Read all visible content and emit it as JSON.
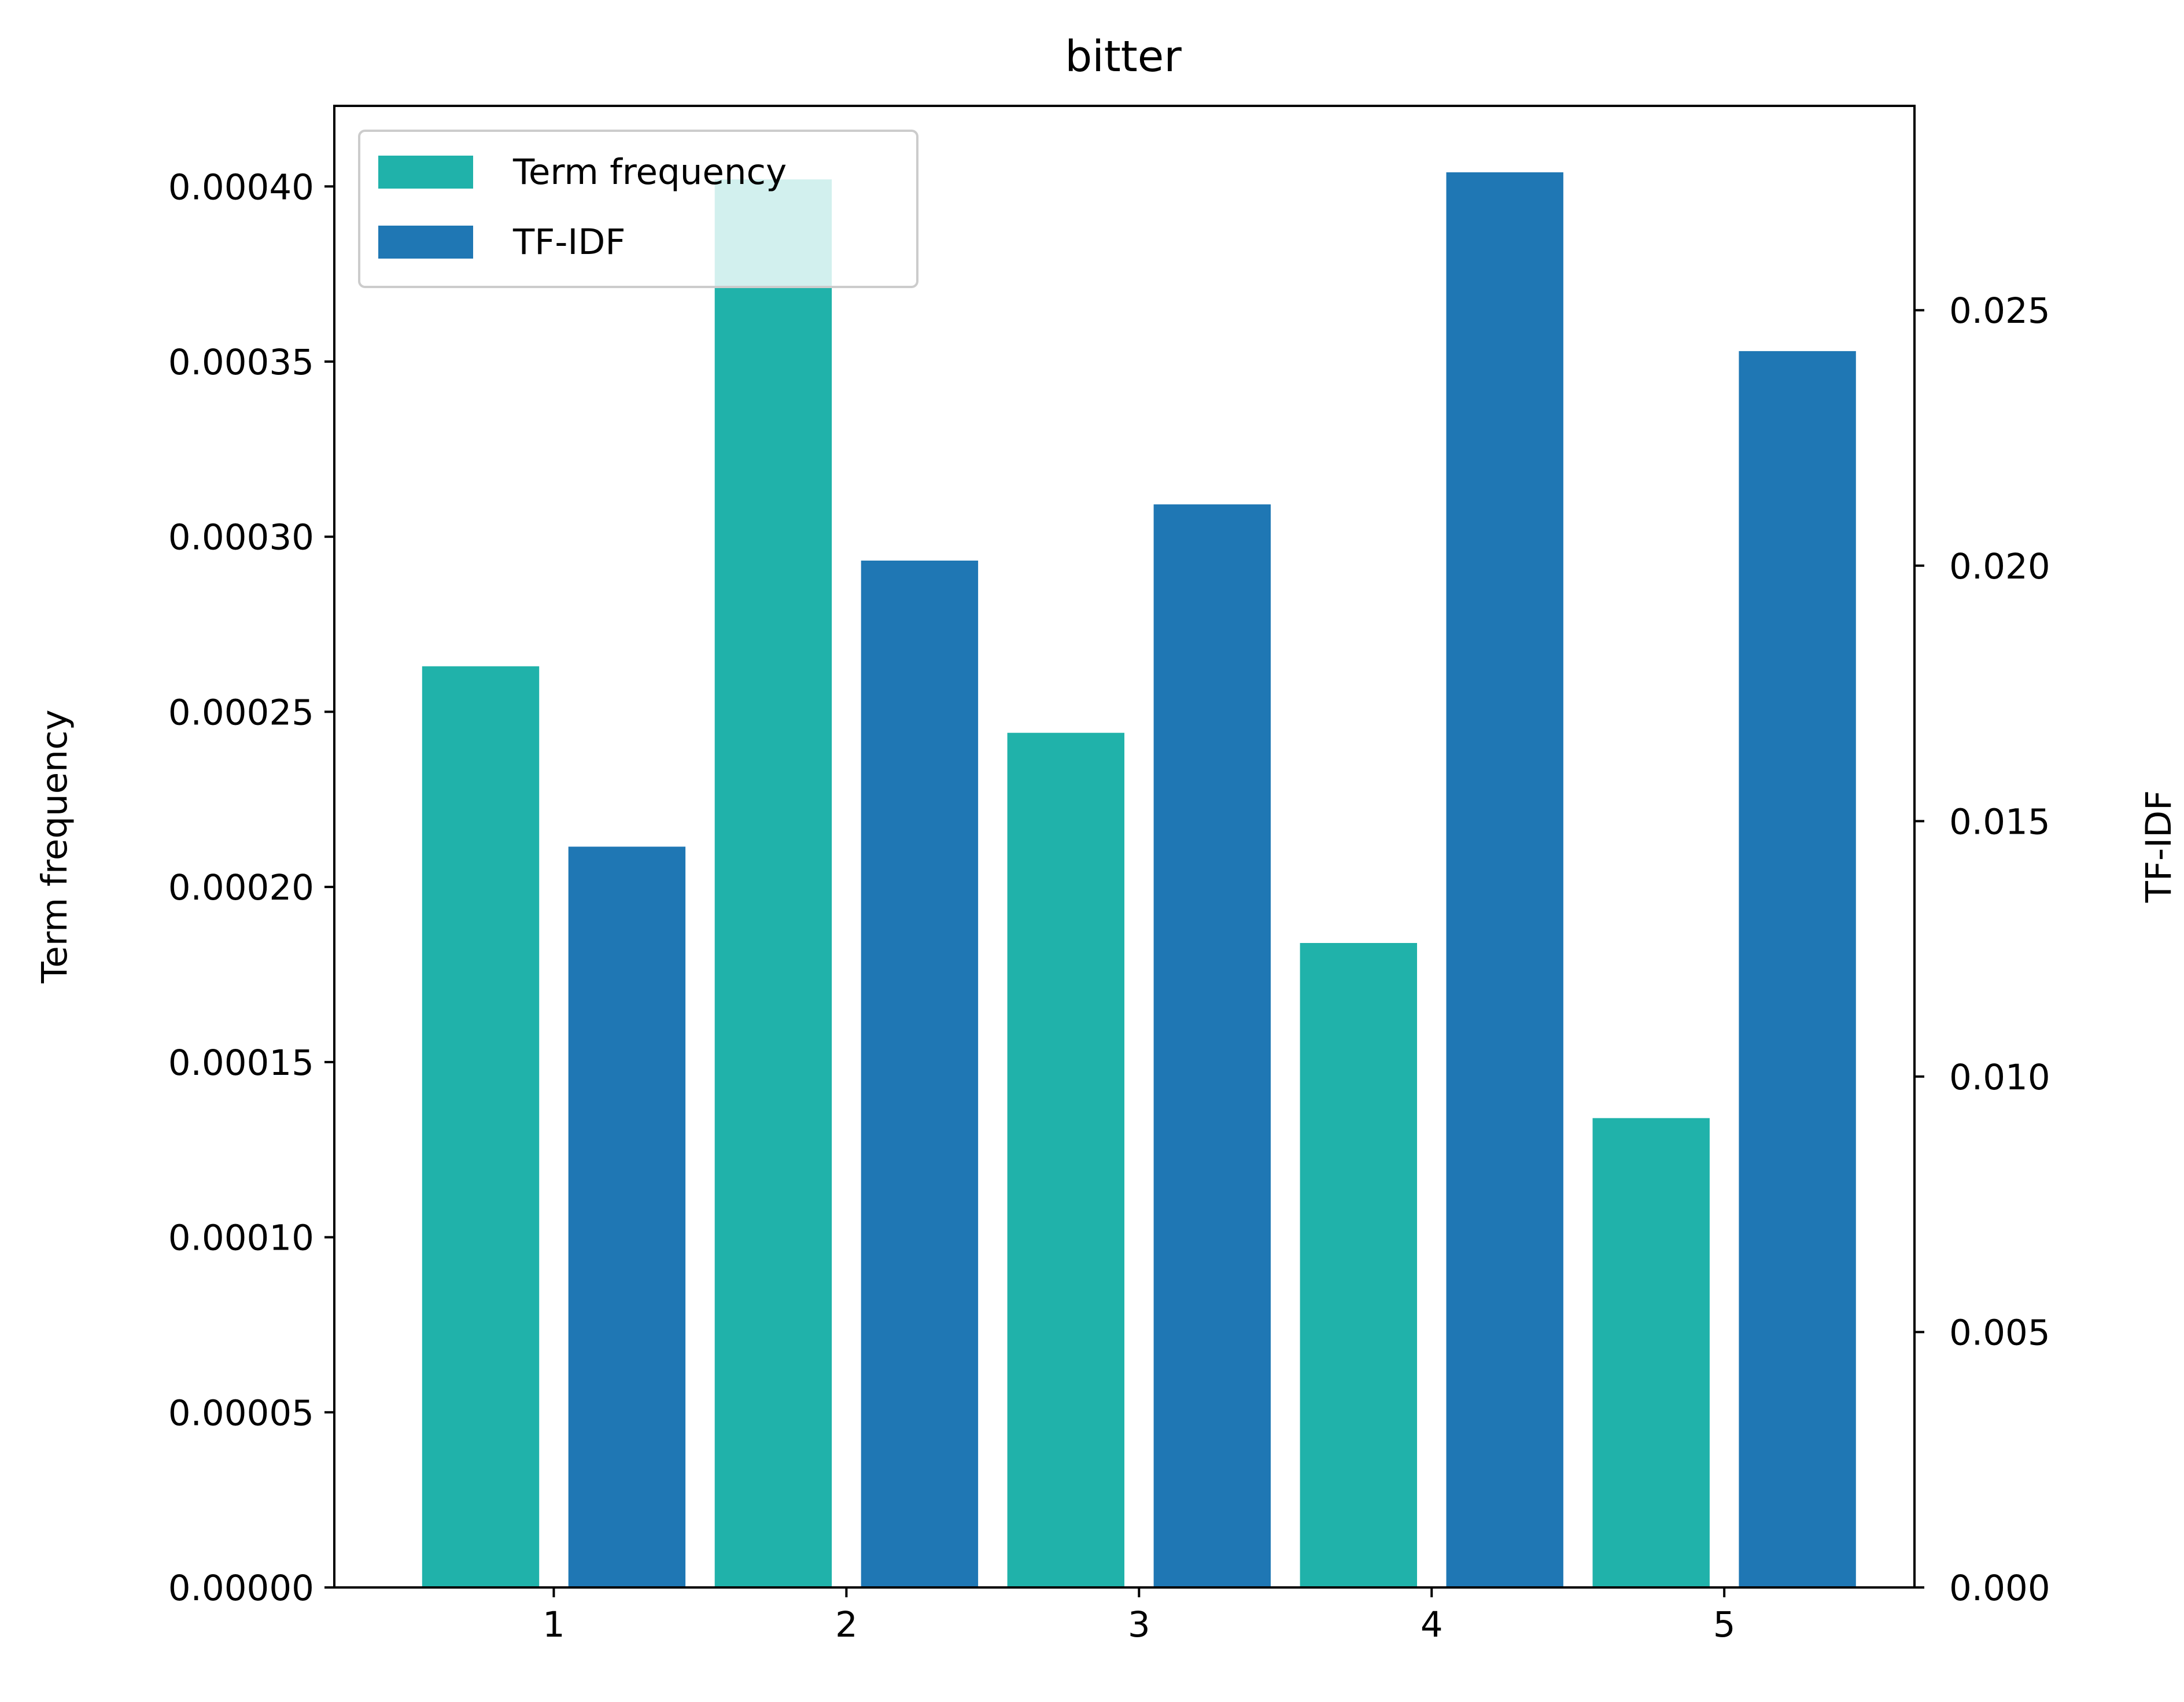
{
  "chart_data": {
    "type": "bar",
    "title": "bitter",
    "xlabel": "",
    "ylabel_left": "Term frequency",
    "ylabel_right": "TF-IDF",
    "x_ticks": [
      1,
      2,
      3,
      4,
      5
    ],
    "xlim": [
      0.25,
      5.65
    ],
    "ylim_left": [
      0,
      0.000423
    ],
    "ylim_right": [
      0,
      0.029
    ],
    "yticks_left": [
      "0.00000",
      "0.00005",
      "0.00010",
      "0.00015",
      "0.00020",
      "0.00025",
      "0.00030",
      "0.00035",
      "0.00040"
    ],
    "yticks_left_values": [
      0,
      5e-05,
      0.0001,
      0.00015,
      0.0002,
      0.00025,
      0.0003,
      0.00035,
      0.0004
    ],
    "yticks_right": [
      "0.000",
      "0.005",
      "0.010",
      "0.015",
      "0.020",
      "0.025"
    ],
    "yticks_right_values": [
      0,
      0.005,
      0.01,
      0.015,
      0.02,
      0.025
    ],
    "legend_position": "upper-left",
    "series": [
      {
        "name": "Term frequency",
        "axis": "left",
        "color": "#20b2aa",
        "x": [
          0.75,
          1.75,
          2.75,
          3.75,
          4.75
        ],
        "values": [
          0.000263,
          0.000402,
          0.000244,
          0.000184,
          0.000134
        ]
      },
      {
        "name": "TF-IDF",
        "axis": "right",
        "color": "#1f77b4",
        "x": [
          1.25,
          2.25,
          3.25,
          4.25,
          5.25
        ],
        "values": [
          0.0145,
          0.0201,
          0.0212,
          0.0277,
          0.0242
        ]
      }
    ],
    "bar_width": 0.4,
    "grid": false
  }
}
